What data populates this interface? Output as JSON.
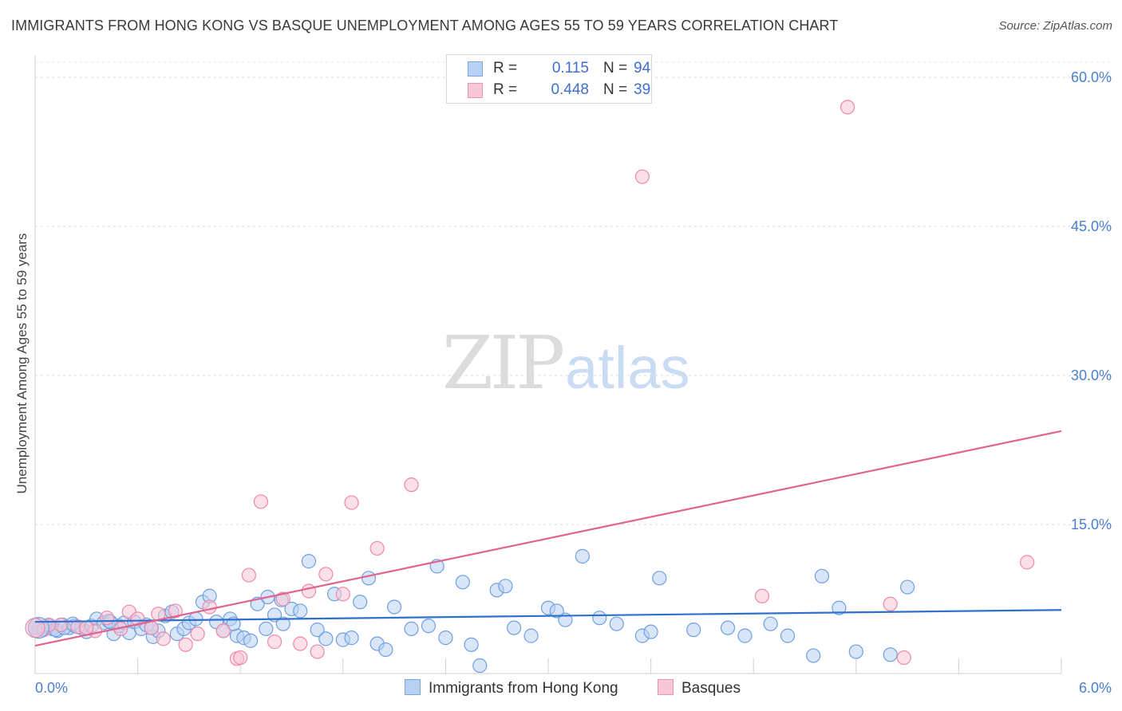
{
  "title": "IMMIGRANTS FROM HONG KONG VS BASQUE UNEMPLOYMENT AMONG AGES 55 TO 59 YEARS CORRELATION CHART",
  "source": "Source: ZipAtlas.com",
  "watermark": {
    "part1": "ZIP",
    "part2": "atlas"
  },
  "legend": {
    "rows": [
      {
        "r_label": "R =",
        "r_value": "0.115",
        "n_label": "N =",
        "n_value": "94",
        "color": "#7aa6e6",
        "fill": "#b8d1f2"
      },
      {
        "r_label": "R =",
        "r_value": "0.448",
        "n_label": "N =",
        "n_value": "39",
        "color": "#ee92b0",
        "fill": "#f8c6d6"
      }
    ]
  },
  "bottom_legend": [
    {
      "label": "Immigrants from Hong Kong",
      "color": "#7aa6e6",
      "fill": "#b8d1f2"
    },
    {
      "label": "Basques",
      "color": "#ee92b0",
      "fill": "#f8c6d6"
    }
  ],
  "chart_data": {
    "type": "scatter",
    "title": "IMMIGRANTS FROM HONG KONG VS BASQUE UNEMPLOYMENT AMONG AGES 55 TO 59 YEARS CORRELATION CHART",
    "xlabel": "",
    "ylabel": "Unemployment Among Ages 55 to 59 years",
    "xlim": [
      0,
      6
    ],
    "ylim": [
      0,
      63
    ],
    "x_tick_labels": [
      {
        "value": 0,
        "label": "0.0%"
      },
      {
        "value": 6,
        "label": "6.0%"
      }
    ],
    "y_tick_labels": [
      {
        "value": 15,
        "label": "15.0%"
      },
      {
        "value": 30,
        "label": "30.0%"
      },
      {
        "value": 45,
        "label": "45.0%"
      },
      {
        "value": 60,
        "label": "60.0%"
      }
    ],
    "series": [
      {
        "name": "Immigrants from Hong Kong",
        "color": "#6f9fe0",
        "fill": "#b8d1f2",
        "trendline": {
          "x": [
            0,
            6
          ],
          "y": [
            5.2,
            6.4
          ]
        },
        "points": [
          [
            0.02,
            4.6
          ],
          [
            0.05,
            4.4
          ],
          [
            0.08,
            4.8
          ],
          [
            0.1,
            4.5
          ],
          [
            0.13,
            4.3
          ],
          [
            0.16,
            4.9
          ],
          [
            0.2,
            4.6
          ],
          [
            0.23,
            4.8
          ],
          [
            0.27,
            4.6
          ],
          [
            0.3,
            4.2
          ],
          [
            0.33,
            4.8
          ],
          [
            0.36,
            5.5
          ],
          [
            0.4,
            5.1
          ],
          [
            0.43,
            5.3
          ],
          [
            0.46,
            4.0
          ],
          [
            0.49,
            4.8
          ],
          [
            0.52,
            5.1
          ],
          [
            0.55,
            4.1
          ],
          [
            0.58,
            5.2
          ],
          [
            0.62,
            4.5
          ],
          [
            0.65,
            4.9
          ],
          [
            0.69,
            3.7
          ],
          [
            0.72,
            4.3
          ],
          [
            0.76,
            5.8
          ],
          [
            0.8,
            6.2
          ],
          [
            0.83,
            4.0
          ],
          [
            0.87,
            4.5
          ],
          [
            0.9,
            5.1
          ],
          [
            0.94,
            5.5
          ],
          [
            0.98,
            7.2
          ],
          [
            1.02,
            7.8
          ],
          [
            1.06,
            5.2
          ],
          [
            1.1,
            4.3
          ],
          [
            1.14,
            5.5
          ],
          [
            1.18,
            3.8
          ],
          [
            1.22,
            3.6
          ],
          [
            1.26,
            3.3
          ],
          [
            1.3,
            7.0
          ],
          [
            1.35,
            4.5
          ],
          [
            1.4,
            5.9
          ],
          [
            1.45,
            5.0
          ],
          [
            1.5,
            6.5
          ],
          [
            1.55,
            6.3
          ],
          [
            1.6,
            11.3
          ],
          [
            1.65,
            4.4
          ],
          [
            1.7,
            3.5
          ],
          [
            1.75,
            8.0
          ],
          [
            1.8,
            3.4
          ],
          [
            1.85,
            3.6
          ],
          [
            1.9,
            7.2
          ],
          [
            1.95,
            9.6
          ],
          [
            2.0,
            3.0
          ],
          [
            2.1,
            6.7
          ],
          [
            2.2,
            4.5
          ],
          [
            2.3,
            4.8
          ],
          [
            2.35,
            10.8
          ],
          [
            2.4,
            3.6
          ],
          [
            2.5,
            9.2
          ],
          [
            2.55,
            2.9
          ],
          [
            2.6,
            0.8
          ],
          [
            2.7,
            8.4
          ],
          [
            2.8,
            4.6
          ],
          [
            2.9,
            3.8
          ],
          [
            3.0,
            6.6
          ],
          [
            3.1,
            5.4
          ],
          [
            3.2,
            11.8
          ],
          [
            3.3,
            5.6
          ],
          [
            3.4,
            5.0
          ],
          [
            3.55,
            3.8
          ],
          [
            3.6,
            4.2
          ],
          [
            3.65,
            9.6
          ],
          [
            4.05,
            4.6
          ],
          [
            4.15,
            3.8
          ],
          [
            4.3,
            5.0
          ],
          [
            4.55,
            1.8
          ],
          [
            4.6,
            9.8
          ],
          [
            4.7,
            6.6
          ],
          [
            4.8,
            2.2
          ],
          [
            5.0,
            1.9
          ],
          [
            5.1,
            8.7
          ],
          [
            0.06,
            4.7
          ],
          [
            0.12,
            4.4
          ],
          [
            0.17,
            4.6
          ],
          [
            0.22,
            5.0
          ],
          [
            0.44,
            5.2
          ],
          [
            0.68,
            4.6
          ],
          [
            1.16,
            5.0
          ],
          [
            1.36,
            7.7
          ],
          [
            1.44,
            7.4
          ],
          [
            2.05,
            2.4
          ],
          [
            2.75,
            8.8
          ],
          [
            3.05,
            6.3
          ],
          [
            3.85,
            4.4
          ],
          [
            4.4,
            3.8
          ]
        ]
      },
      {
        "name": "Basques",
        "color": "#ee88aa",
        "fill": "#f8c6d6",
        "trendline": {
          "x": [
            0,
            6
          ],
          "y": [
            2.8,
            24.4
          ]
        },
        "points": [
          [
            0.0,
            4.6
          ],
          [
            0.05,
            4.4
          ],
          [
            0.15,
            4.9
          ],
          [
            0.25,
            4.7
          ],
          [
            0.35,
            4.3
          ],
          [
            0.42,
            5.6
          ],
          [
            0.5,
            4.5
          ],
          [
            0.55,
            6.2
          ],
          [
            0.6,
            5.5
          ],
          [
            0.68,
            4.6
          ],
          [
            0.75,
            3.5
          ],
          [
            0.82,
            6.3
          ],
          [
            0.88,
            2.9
          ],
          [
            0.95,
            4.0
          ],
          [
            1.02,
            6.7
          ],
          [
            1.1,
            4.3
          ],
          [
            1.18,
            1.5
          ],
          [
            1.2,
            1.6
          ],
          [
            1.25,
            9.9
          ],
          [
            1.32,
            17.3
          ],
          [
            1.4,
            3.2
          ],
          [
            1.45,
            7.5
          ],
          [
            1.55,
            3.0
          ],
          [
            1.6,
            8.3
          ],
          [
            1.65,
            2.2
          ],
          [
            1.7,
            10.0
          ],
          [
            1.8,
            8.0
          ],
          [
            1.85,
            17.2
          ],
          [
            2.0,
            12.6
          ],
          [
            2.2,
            19.0
          ],
          [
            3.55,
            50.0
          ],
          [
            4.25,
            7.8
          ],
          [
            4.75,
            57.0
          ],
          [
            5.0,
            7.0
          ],
          [
            5.08,
            1.6
          ],
          [
            5.8,
            11.2
          ],
          [
            0.08,
            4.9
          ],
          [
            0.3,
            4.6
          ],
          [
            0.72,
            6.0
          ]
        ]
      }
    ]
  }
}
